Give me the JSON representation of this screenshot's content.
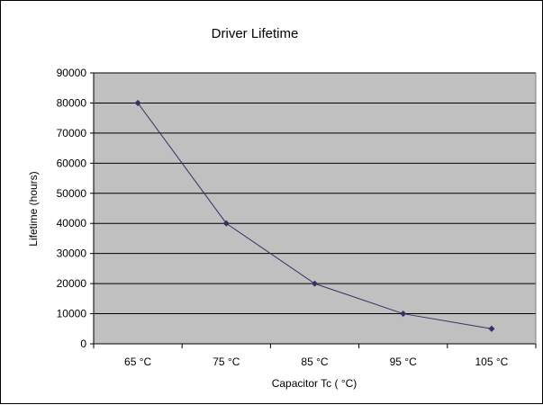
{
  "chart_data": {
    "type": "line",
    "title": "Driver Lifetime",
    "xlabel": "Capacitor Tc ( °C)",
    "ylabel": "Lifetime (hours)",
    "categories": [
      "65 °C",
      "75 °C",
      "85 °C",
      "95 °C",
      "105 °C"
    ],
    "series": [
      {
        "values": [
          80000,
          40000,
          20000,
          10000,
          5000
        ]
      }
    ],
    "ylim": [
      0,
      90000
    ],
    "yticks": [
      "0",
      "10000",
      "20000",
      "30000",
      "40000",
      "50000",
      "60000",
      "70000",
      "80000",
      "90000"
    ],
    "grid": true,
    "plot_background": "#c0c0c0",
    "line_color": "#333366",
    "legend": "none"
  }
}
